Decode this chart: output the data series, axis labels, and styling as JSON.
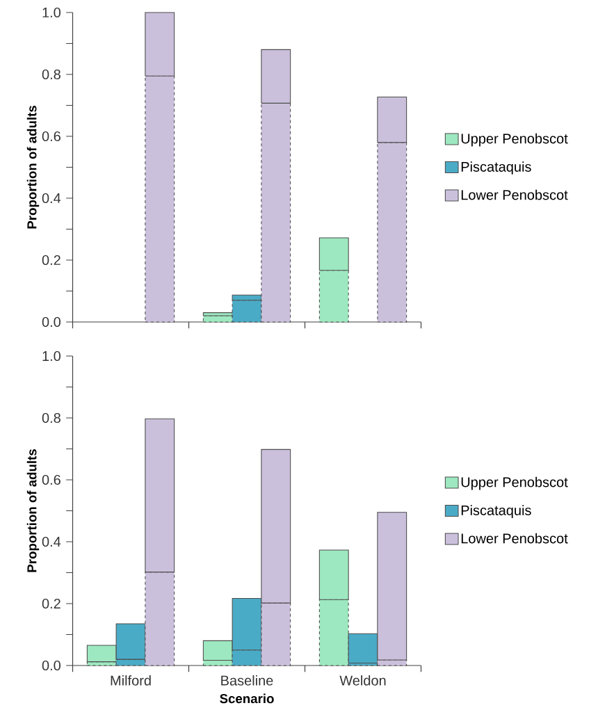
{
  "chart_data": [
    {
      "type": "bar",
      "stacked": true,
      "ylabel": "Proportion of adults",
      "categories": [
        null,
        null,
        null,
        null,
        null,
        null,
        null,
        null,
        null,
        null,
        null
      ],
      "tick_labels": "y",
      "legend": "right",
      "ylim": [
        0,
        1
      ],
      "yticks": [
        {
          "value": 0,
          "label": "0.0"
        },
        {
          "value": 0.1,
          "label": null
        },
        {
          "value": 0.2,
          "label": "0.2"
        },
        {
          "value": 0.3,
          "label": null
        },
        {
          "value": 0.4,
          "label": "0.4"
        },
        {
          "value": 0.5,
          "label": null
        },
        {
          "value": 0.6,
          "label": "0.6"
        },
        {
          "value": 0.7,
          "label": null
        },
        {
          "value": 0.8,
          "label": "0.8"
        },
        {
          "value": 0.9,
          "label": null
        },
        {
          "value": 1,
          "label": "1.0"
        }
      ],
      "series": [
        {
          "color": "#9de8c0",
          "line_style": "dashed",
          "values": [
            null,
            null,
            null,
            null,
            0.02,
            null,
            null,
            null,
            0.167,
            null,
            null
          ]
        },
        {
          "name": "Upper Penobscot",
          "color": "#9de8c0",
          "line_style": "solid",
          "values": [
            null,
            null,
            null,
            null,
            0.01,
            null,
            null,
            null,
            0.105,
            null,
            null
          ]
        },
        {
          "color": "#4aabc6",
          "line_style": "dashed",
          "values": [
            null,
            null,
            null,
            null,
            null,
            0.07,
            null,
            null,
            null,
            null,
            null
          ]
        },
        {
          "name": "Piscataquis",
          "color": "#4aabc6",
          "line_style": "solid",
          "values": [
            null,
            null,
            null,
            null,
            null,
            0.017,
            null,
            null,
            null,
            null,
            null
          ]
        },
        {
          "color": "#cbc0dc",
          "line_style": "dashed",
          "values": [
            null,
            null,
            0.795,
            null,
            null,
            null,
            0.707,
            null,
            null,
            null,
            0.58
          ]
        },
        {
          "name": "Lower Penobscot",
          "color": "#cbc0dc",
          "line_style": "solid",
          "values": [
            null,
            null,
            0.205,
            null,
            null,
            null,
            0.173,
            null,
            null,
            null,
            0.147
          ]
        }
      ]
    },
    {
      "type": "bar",
      "stacked": true,
      "ylabel": "Proportion of adults",
      "xlabel": "Scenario",
      "categories": [
        null,
        "Milford",
        null,
        null,
        null,
        "Baseline",
        null,
        null,
        null,
        "Weldon",
        null
      ],
      "legend": "right",
      "ylim": [
        0,
        1
      ],
      "yticks": [
        {
          "value": 0,
          "label": "0.0"
        },
        {
          "value": 0.1,
          "label": null
        },
        {
          "value": 0.2,
          "label": "0.2"
        },
        {
          "value": 0.3,
          "label": null
        },
        {
          "value": 0.4,
          "label": "0.4"
        },
        {
          "value": 0.5,
          "label": null
        },
        {
          "value": 0.6,
          "label": "0.6"
        },
        {
          "value": 0.7,
          "label": null
        },
        {
          "value": 0.8,
          "label": "0.8"
        },
        {
          "value": 0.9,
          "label": null
        },
        {
          "value": 1,
          "label": "1.0"
        }
      ],
      "series": [
        {
          "color": "#9de8c0",
          "line_style": "dashed",
          "values": [
            0.012,
            null,
            null,
            null,
            0.017,
            null,
            null,
            null,
            0.213,
            null,
            null
          ]
        },
        {
          "name": "Upper Penobscot",
          "color": "#9de8c0",
          "line_style": "solid",
          "values": [
            0.053,
            null,
            null,
            null,
            0.063,
            null,
            null,
            null,
            0.16,
            null,
            null
          ]
        },
        {
          "color": "#4aabc6",
          "line_style": "dashed",
          "values": [
            null,
            0.02,
            null,
            null,
            null,
            0.05,
            null,
            null,
            null,
            0.008,
            null
          ]
        },
        {
          "name": "Piscataquis",
          "color": "#4aabc6",
          "line_style": "solid",
          "values": [
            null,
            0.115,
            null,
            null,
            null,
            0.167,
            null,
            null,
            null,
            0.095,
            null
          ]
        },
        {
          "color": "#cbc0dc",
          "line_style": "dashed",
          "values": [
            null,
            null,
            0.302,
            null,
            null,
            null,
            0.202,
            null,
            null,
            null,
            0.018
          ]
        },
        {
          "name": "Lower Penobscot",
          "color": "#cbc0dc",
          "line_style": "solid",
          "values": [
            null,
            null,
            0.495,
            null,
            null,
            null,
            0.496,
            null,
            null,
            null,
            0.477
          ]
        }
      ]
    }
  ]
}
